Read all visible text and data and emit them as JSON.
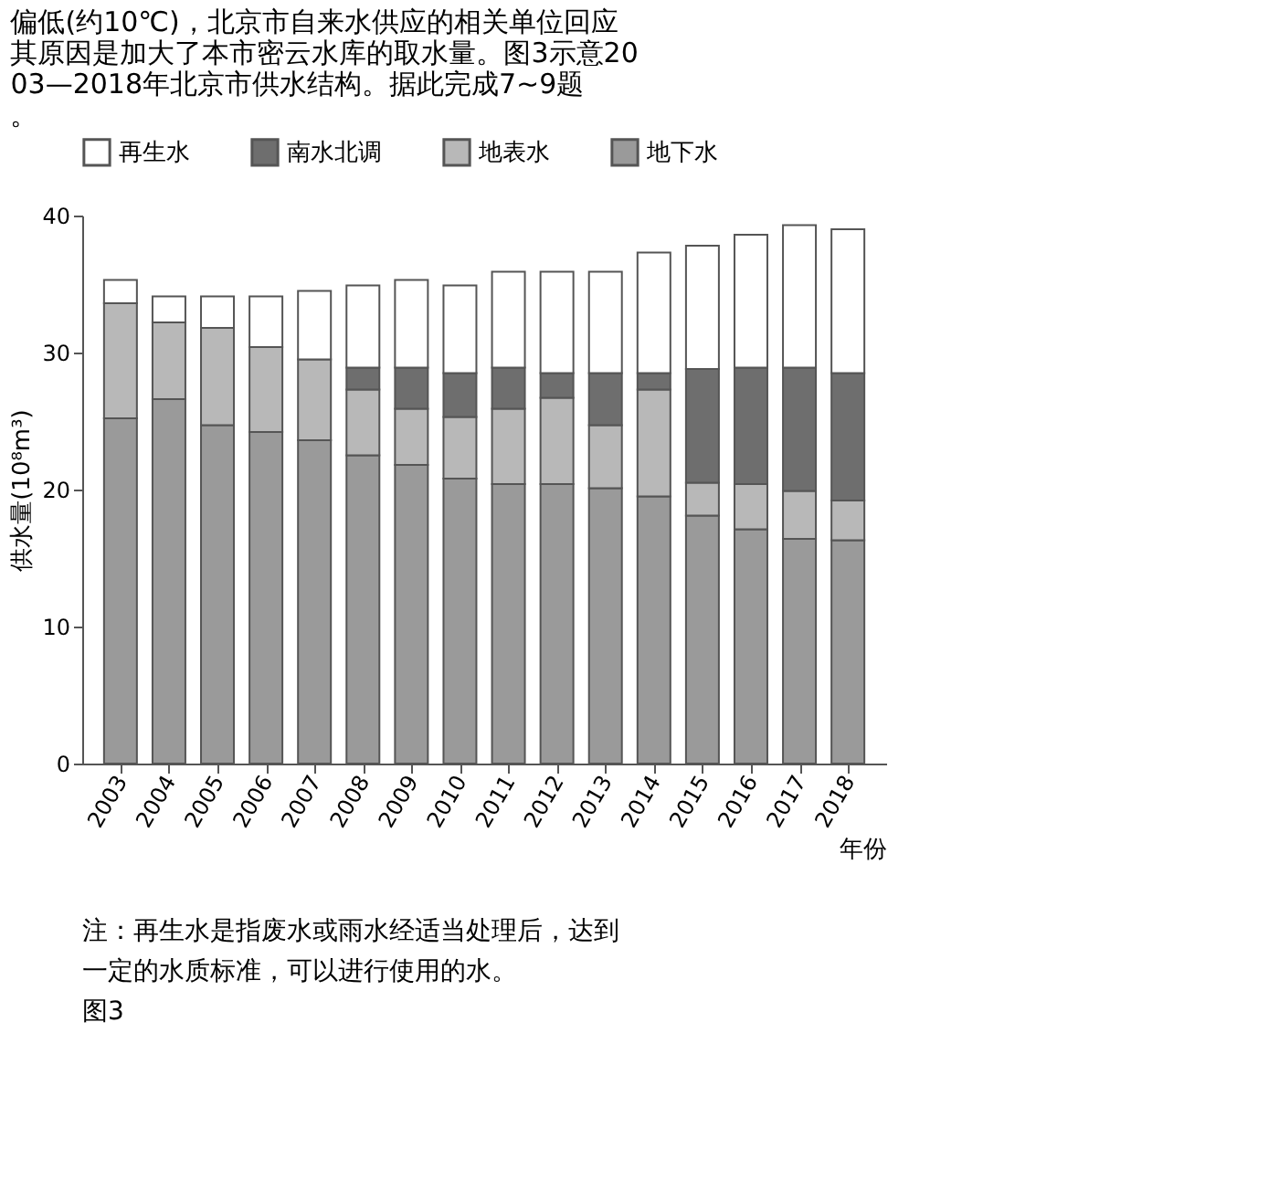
{
  "chart_data": {
    "type": "bar",
    "stacked": true,
    "title": "偏低(约10℃)，北京市自来水供应的相关单位回应其原因是加大了本市密云水库的取水量。图3示意2003—2018年北京市供水结构。据此完成7~9题。",
    "categories": [
      "2003",
      "2004",
      "2005",
      "2006",
      "2007",
      "2008",
      "2009",
      "2010",
      "2011",
      "2012",
      "2013",
      "2014",
      "2015",
      "2016",
      "2017",
      "2018"
    ],
    "series": [
      {
        "name": "地下水",
        "color": "#9a9a9a",
        "values": [
          25.2,
          26.6,
          24.7,
          24.2,
          23.6,
          22.5,
          21.8,
          20.8,
          20.4,
          20.4,
          20.1,
          19.5,
          18.1,
          17.1,
          16.4,
          16.3
        ]
      },
      {
        "name": "地表水",
        "color": "#b8b8b8",
        "values": [
          8.4,
          5.6,
          7.1,
          6.2,
          5.9,
          4.8,
          4.1,
          4.5,
          5.5,
          6.3,
          4.6,
          7.8,
          2.4,
          3.3,
          3.5,
          2.9
        ]
      },
      {
        "name": "南水北调",
        "color": "#6e6e6e",
        "values": [
          null,
          null,
          null,
          null,
          null,
          1.6,
          3.0,
          3.2,
          3.0,
          1.8,
          3.8,
          1.2,
          8.3,
          8.5,
          9.0,
          9.3
        ]
      },
      {
        "name": "再生水",
        "color": "#ffffff",
        "values": [
          1.7,
          1.9,
          2.3,
          3.7,
          5.0,
          6.0,
          6.4,
          6.4,
          7.0,
          7.4,
          7.4,
          8.8,
          9.0,
          9.7,
          10.4,
          10.5
        ]
      }
    ],
    "xlabel": "年份",
    "ylabel": "供水量(10⁸m³)",
    "ylim": [
      0,
      40
    ],
    "yticks": [
      0,
      10,
      20,
      30,
      40
    ],
    "legend": "top",
    "grid": false,
    "annotations": [
      "注：再生水是指废水或雨水经适当处理后，达到",
      "一定的水质标准，可以进行使用的水。",
      "图3"
    ]
  }
}
